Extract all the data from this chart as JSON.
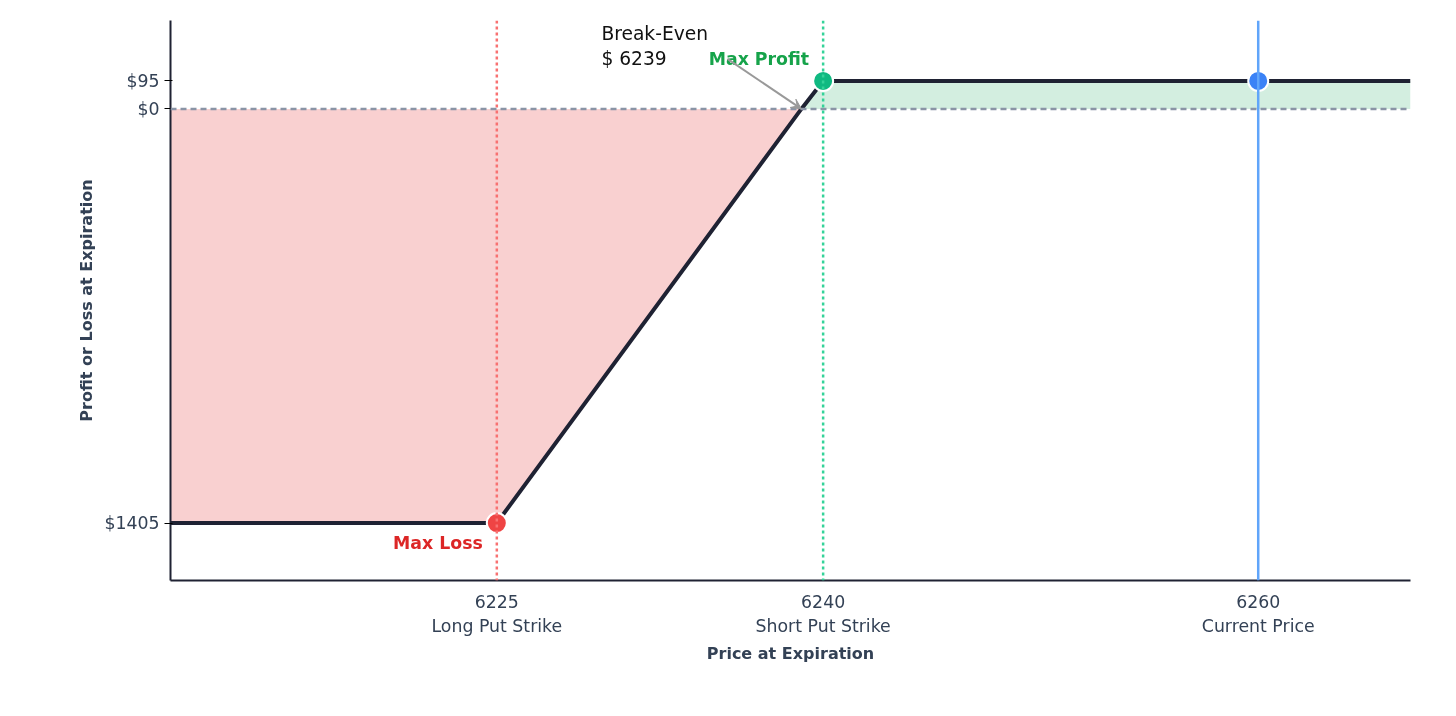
{
  "chart_data": {
    "type": "line",
    "xlabel": "Price at Expiration",
    "ylabel": "Profit or Loss at Expiration",
    "xlim": [
      6210,
      6267
    ],
    "xticks": [
      {
        "value": 6225,
        "label": "6225\nLong Put Strike"
      },
      {
        "value": 6240,
        "label": "6240\nShort Put Strike"
      },
      {
        "value": 6260,
        "label": "6260\nCurrent Price"
      }
    ],
    "ylim": [
      -1600,
      300
    ],
    "yticks": [
      {
        "value": 95,
        "label": "$95"
      },
      {
        "value": 0,
        "label": "$0"
      },
      {
        "value": -1405,
        "label": "$1405"
      }
    ],
    "grid": false,
    "series": [
      {
        "type": "area",
        "color": "#f8c4c4",
        "x": [
          6210,
          6225,
          6239
        ],
        "values": [
          -1405,
          -1405,
          0
        ]
      },
      {
        "type": "area",
        "color": "#c8ead8",
        "x": [
          6239,
          6240,
          6267
        ],
        "values": [
          0,
          95,
          95
        ]
      },
      {
        "type": "scatter",
        "color": "#ef4444",
        "marker": "circle",
        "x": [
          6225
        ],
        "values": [
          -1405
        ]
      },
      {
        "type": "scatter",
        "color": "#10b981",
        "marker": "circle",
        "x": [
          6240
        ],
        "values": [
          95
        ]
      },
      {
        "type": "scatter",
        "color": "#3b82f6",
        "marker": "circle",
        "x": [
          6260
        ],
        "values": [
          95
        ]
      }
    ],
    "ref_lines": [
      {
        "axis": "y",
        "value": 0,
        "color": "#8a94a6",
        "line_style": "dashed"
      },
      {
        "axis": "x",
        "value": 6225,
        "color": "#f87171",
        "line_style": "dotted"
      },
      {
        "axis": "x",
        "value": 6240,
        "color": "#34d399",
        "line_style": "dotted"
      },
      {
        "axis": "x",
        "value": 6260,
        "color": "#60a5fa",
        "line_style": "solid"
      }
    ],
    "annotations": [
      {
        "text": "Max Profit",
        "x": 6240,
        "y": 95
      },
      {
        "text": "Max Loss",
        "x": 6225,
        "y": -1405
      },
      {
        "text": "Break-Even\n$ 6239",
        "x": 6239,
        "y": 0
      }
    ]
  }
}
